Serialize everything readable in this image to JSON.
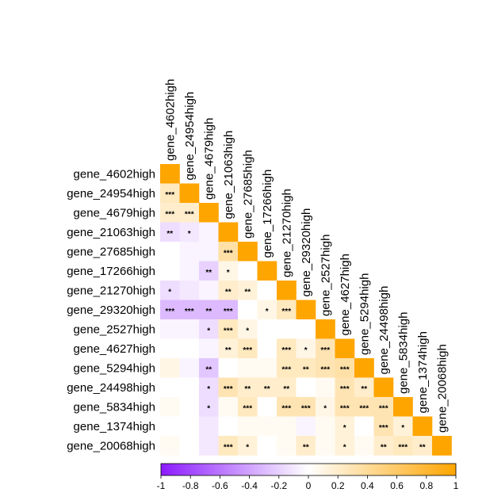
{
  "chart_data": {
    "type": "heatmap",
    "layout": "lower-triangle correlation matrix",
    "labels": [
      "gene_4602high",
      "gene_24954high",
      "gene_4679high",
      "gene_21063high",
      "gene_27685high",
      "gene_17266high",
      "gene_21270high",
      "gene_29320high",
      "gene_2527high",
      "gene_4627high",
      "gene_5294high",
      "gene_24498high",
      "gene_5834high",
      "gene_1374high",
      "gene_20068high"
    ],
    "values": [
      [
        1
      ],
      [
        0.25,
        1
      ],
      [
        0.2,
        0.2,
        1
      ],
      [
        -0.15,
        -0.1,
        -0.05,
        1
      ],
      [
        0.0,
        -0.05,
        -0.05,
        0.35,
        1
      ],
      [
        0.0,
        -0.05,
        -0.2,
        0.1,
        0.0,
        1
      ],
      [
        -0.15,
        -0.1,
        -0.05,
        0.2,
        0.15,
        0.0,
        1
      ],
      [
        -0.3,
        -0.3,
        -0.3,
        -0.3,
        0.0,
        0.1,
        0.25,
        1
      ],
      [
        -0.05,
        -0.05,
        -0.15,
        0.25,
        0.1,
        0.0,
        0.0,
        0.0,
        1
      ],
      [
        0.0,
        0.0,
        -0.05,
        0.15,
        0.25,
        0.0,
        0.25,
        0.1,
        0.3,
        1
      ],
      [
        0.1,
        -0.05,
        -0.25,
        0.0,
        0.05,
        0.05,
        0.25,
        0.25,
        0.3,
        0.35,
        1
      ],
      [
        0.0,
        0.0,
        -0.15,
        0.3,
        0.2,
        0.2,
        0.2,
        0.0,
        0.05,
        0.3,
        0.2,
        1
      ],
      [
        0.05,
        0.0,
        -0.15,
        0.05,
        0.25,
        0.0,
        0.3,
        0.3,
        0.1,
        0.3,
        0.3,
        0.3,
        1
      ],
      [
        0.0,
        0.0,
        -0.1,
        0.0,
        0.05,
        0.05,
        0.05,
        -0.05,
        0.05,
        0.15,
        0.0,
        0.3,
        0.15,
        1
      ],
      [
        0.05,
        0.0,
        -0.1,
        0.25,
        0.15,
        0.0,
        0.05,
        0.2,
        0.05,
        0.15,
        0.05,
        0.2,
        0.25,
        0.2,
        1
      ]
    ],
    "significance": [
      [
        ""
      ],
      [
        "***",
        ""
      ],
      [
        "***",
        "***",
        ""
      ],
      [
        "**",
        "*",
        "",
        ""
      ],
      [
        "",
        "",
        "",
        "***",
        ""
      ],
      [
        "",
        "",
        "**",
        "*",
        "",
        ""
      ],
      [
        "*",
        "",
        "",
        "**",
        "**",
        "",
        ""
      ],
      [
        "***",
        "***",
        "**",
        "***",
        "",
        "*",
        "***",
        ""
      ],
      [
        "",
        "",
        "*",
        "***",
        "*",
        "",
        "",
        "",
        ""
      ],
      [
        "",
        "",
        "",
        "**",
        "***",
        "",
        "***",
        "*",
        "***",
        ""
      ],
      [
        "",
        "",
        "**",
        "",
        "",
        "",
        "***",
        "**",
        "***",
        "***",
        ""
      ],
      [
        "",
        "",
        "*",
        "***",
        "**",
        "**",
        "**",
        "",
        "",
        "***",
        "**",
        ""
      ],
      [
        "",
        "",
        "*",
        "",
        "***",
        "",
        "***",
        "***",
        "*",
        "***",
        "***",
        "***",
        ""
      ],
      [
        "",
        "",
        "",
        "",
        "",
        "",
        "",
        "",
        "",
        "*",
        "",
        "***",
        "*",
        ""
      ],
      [
        "",
        "",
        "",
        "***",
        "*",
        "",
        "",
        "**",
        "",
        "*",
        "",
        "**",
        "***",
        "**",
        ""
      ]
    ],
    "colorbar": {
      "ticks": [
        "-1",
        "-0.8",
        "-0.6",
        "-0.4",
        "-0.2",
        "0",
        "0.2",
        "0.4",
        "0.6",
        "0.8",
        "1"
      ],
      "range": [
        -1,
        1
      ],
      "colors": {
        "low": "#8c1aff",
        "mid": "#ffffff",
        "high": "#ffa500"
      }
    }
  }
}
